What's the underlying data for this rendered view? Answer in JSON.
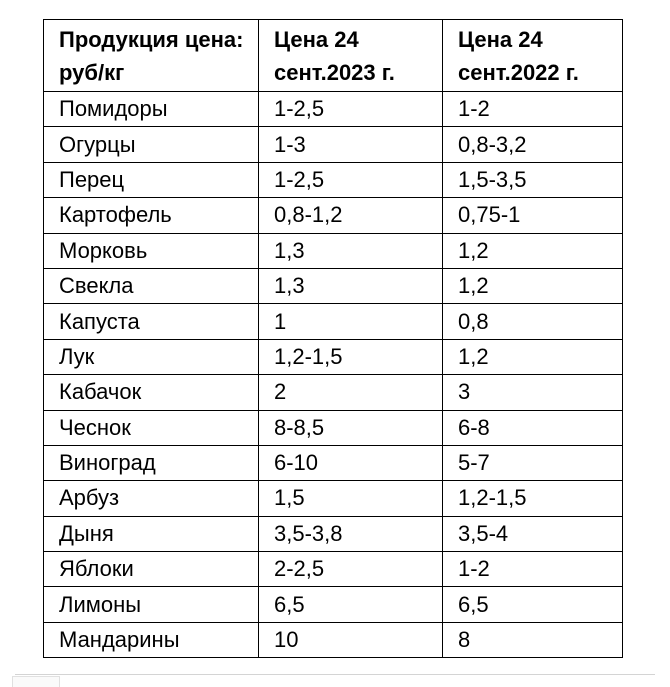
{
  "table": {
    "headers": [
      "Продукция цена: руб/кг",
      "Цена 24 сент.2023 г.",
      "Цена 24 сент.2022 г."
    ],
    "rows": [
      [
        "Помидоры",
        "1-2,5",
        "1-2"
      ],
      [
        "Огурцы",
        "1-3",
        "0,8-3,2"
      ],
      [
        "Перец",
        "1-2,5",
        "1,5-3,5"
      ],
      [
        "Картофель",
        "0,8-1,2",
        "0,75-1"
      ],
      [
        "Морковь",
        "1,3",
        "1,2"
      ],
      [
        "Свекла",
        "1,3",
        "1,2"
      ],
      [
        "Капуста",
        "1",
        "0,8"
      ],
      [
        "Лук",
        "1,2-1,5",
        "1,2"
      ],
      [
        "Кабачок",
        "2",
        "3"
      ],
      [
        "Чеснок",
        "8-8,5",
        "6-8"
      ],
      [
        "Виноград",
        "6-10",
        "5-7"
      ],
      [
        "Арбуз",
        "1,5",
        "1,2-1,5"
      ],
      [
        "Дыня",
        "3,5-3,8",
        "3,5-4"
      ],
      [
        "Яблоки",
        "2-2,5",
        "1-2"
      ],
      [
        "Лимоны",
        "6,5",
        "6,5"
      ],
      [
        "Мандарины",
        "10",
        "8"
      ]
    ]
  }
}
